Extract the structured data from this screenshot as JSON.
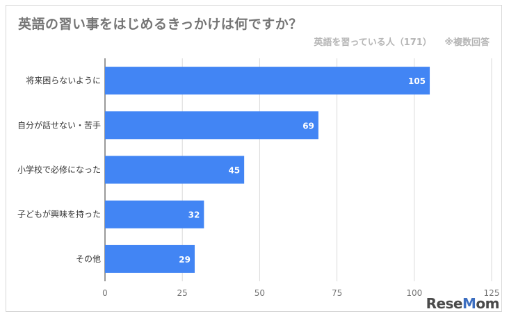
{
  "chart_data": {
    "type": "bar",
    "orientation": "horizontal",
    "title": "英語の習い事をはじめるきっかけは何ですか？",
    "subtitle": "英語を習っている人（171） ※複数回答",
    "categories": [
      "将来困らないように",
      "自分が話せない・苦手",
      "小学校で必修になった",
      "子どもが興味を持った",
      "その他"
    ],
    "values": [
      105,
      69,
      45,
      32,
      29
    ],
    "xlim": [
      0,
      125
    ],
    "xticks": [
      0,
      25,
      50,
      75,
      100,
      125
    ],
    "grid": true,
    "bar_color": "#4285f4",
    "data_labels": true
  },
  "watermark": "ReseMom"
}
